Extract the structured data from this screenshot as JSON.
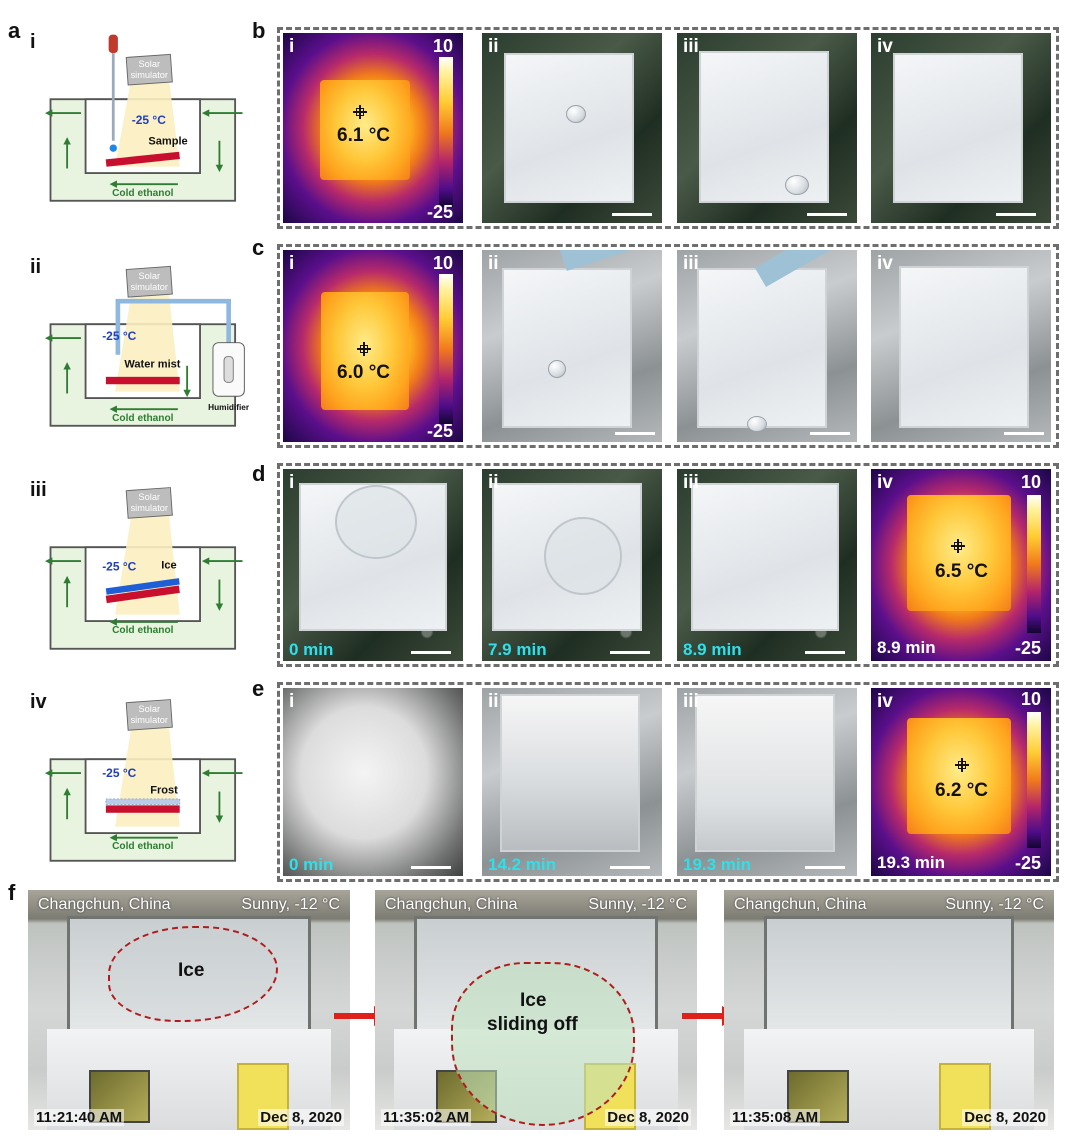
{
  "panel_letters": {
    "a": "a",
    "b": "b",
    "c": "c",
    "d": "d",
    "e": "e",
    "f": "f"
  },
  "roman": [
    "i",
    "ii",
    "iii",
    "iv"
  ],
  "schematics": {
    "solar": "Solar",
    "simulator": "simulator",
    "temperature": "-25 °C",
    "cold_ethanol": "Cold ethanol",
    "sample_label": "Sample",
    "water_mist": "Water mist",
    "humidifier": "Humidifier",
    "ice_label": "Ice",
    "frost_label": "Frost"
  },
  "colorbar": {
    "max": "10",
    "min": "-25"
  },
  "row_b": {
    "thermal_temp": "6.1 °C"
  },
  "row_c": {
    "thermal_temp": "6.0 °C"
  },
  "row_d": {
    "times": [
      "0 min",
      "7.9 min",
      "8.9 min",
      "8.9 min"
    ],
    "thermal_temp": "6.5 °C"
  },
  "row_e": {
    "times": [
      "0 min",
      "14.2 min",
      "19.3 min",
      "19.3 min"
    ],
    "thermal_temp": "6.2 °C"
  },
  "row_f": {
    "location": "Changchun, China",
    "weather": "Sunny, -12 °C",
    "date": "Dec 8, 2020",
    "times": [
      "11:21:40 AM",
      "11:35:02 AM",
      "11:35:08 AM"
    ],
    "ice_label": "Ice",
    "sliding_line1": "Ice",
    "sliding_line2": "sliding off"
  },
  "colors": {
    "arrow": "#e0201b",
    "ethanol": "#e8f4e0",
    "sample": "#c8102e",
    "ice": "#1e5fd8",
    "temp_text": "#1f3fbf",
    "outline": "#b01c1c"
  }
}
